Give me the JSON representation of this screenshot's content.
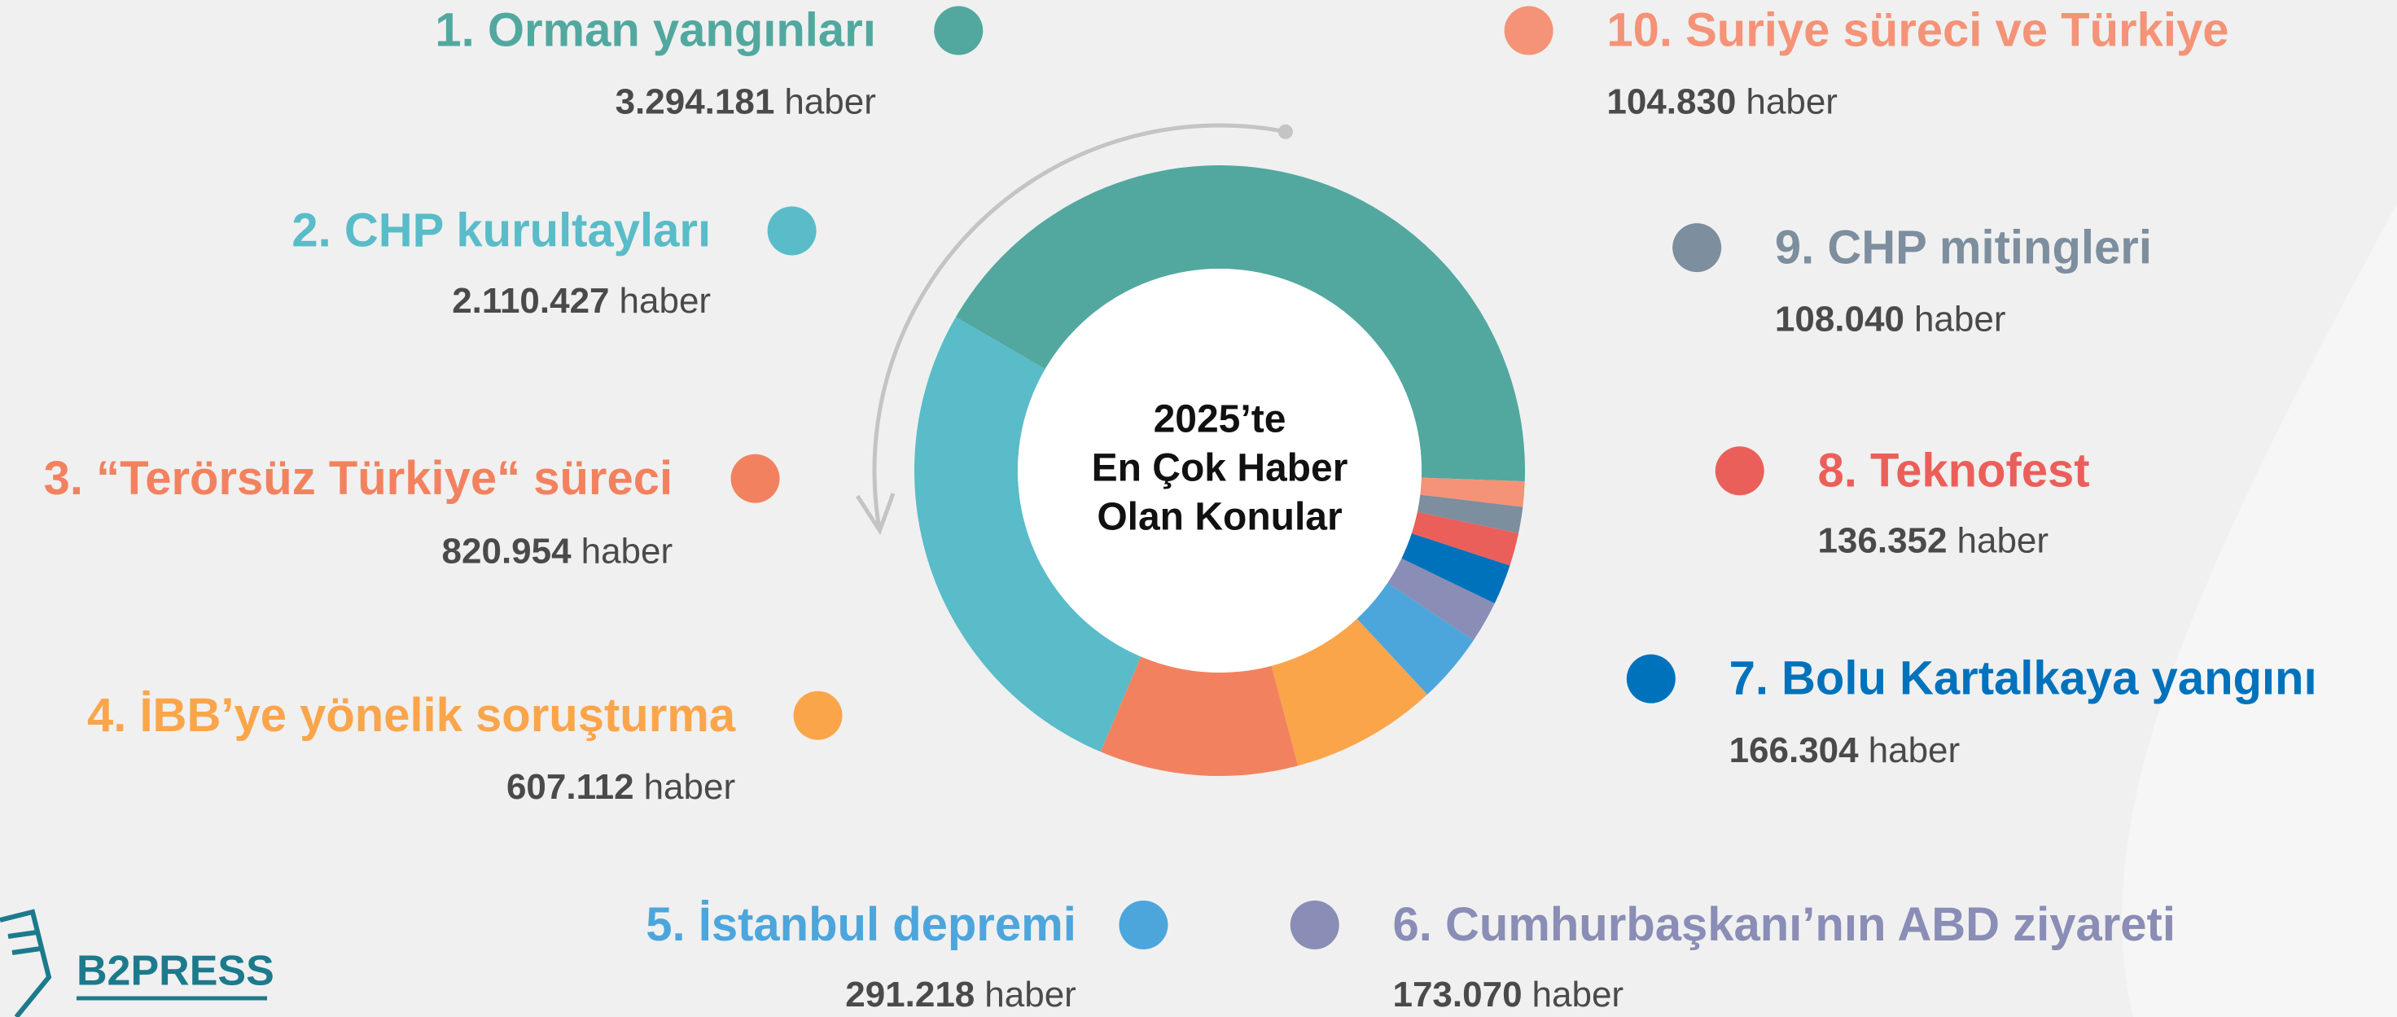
{
  "chart_data": {
    "type": "pie",
    "donut": true,
    "title": [
      "2025’te",
      "En Çok Haber",
      "Olan Konular"
    ],
    "categories": [
      "1. Orman yangınları",
      "2. CHP kurultayları",
      "3. “Terörsüz Türkiye“ süreci",
      "4. İBB’ye yönelik soruşturma",
      "5. İstanbul depremi",
      "6. Cumhurbaşkanı’nın ABD ziyareti",
      "7. Bolu Kartalkaya yangını",
      "8. Teknofest",
      "9. CHP mitingleri",
      "10. Suriye süreci ve Türkiye"
    ],
    "values": [
      3294181,
      2110427,
      820954,
      607112,
      291218,
      173070,
      166304,
      136352,
      108040,
      104830
    ],
    "value_labels": [
      "3.294.181",
      "2.110.427",
      "820.954",
      "607.112",
      "291.218",
      "173.070",
      "166.304",
      "136.352",
      "108.040",
      "104.830"
    ],
    "unit": "haber",
    "colors": [
      "#52a89f",
      "#59bcc8",
      "#f2825f",
      "#fba54b",
      "#4ca6dc",
      "#8a8db5",
      "#0072bb",
      "#eb5f5a",
      "#7d8e9e",
      "#f49377"
    ],
    "direction": "counterclockwise",
    "brand": "B2PRESS"
  }
}
